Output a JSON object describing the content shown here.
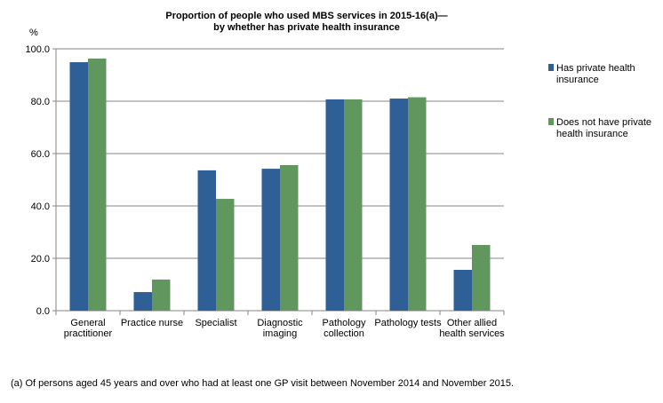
{
  "chart_data": {
    "type": "bar",
    "title": [
      "Proportion of people who used MBS services in 2015-16(a)—",
      "by whether has private health insurance"
    ],
    "ylabel": "%",
    "xlabel": "",
    "ylim": [
      0,
      100
    ],
    "yticks": [
      "0.0",
      "20.0",
      "40.0",
      "60.0",
      "80.0",
      "100.0"
    ],
    "grid": true,
    "legend_position": "right",
    "categories": [
      [
        "General",
        "practitioner"
      ],
      [
        "Practice nurse"
      ],
      [
        "Specialist"
      ],
      [
        "Diagnostic",
        "imaging"
      ],
      [
        "Pathology",
        "collection"
      ],
      [
        "Pathology tests"
      ],
      [
        "Other allied",
        "health services"
      ]
    ],
    "series": [
      {
        "name": [
          "Has private health",
          "insurance"
        ],
        "color": "#2E5F96",
        "values": [
          94.9,
          7.1,
          53.6,
          54.2,
          80.7,
          81.0,
          15.6
        ]
      },
      {
        "name": [
          "Does not have private",
          "health insurance"
        ],
        "color": "#61975E",
        "values": [
          96.3,
          11.9,
          42.7,
          55.6,
          80.7,
          81.5,
          25.1
        ]
      }
    ],
    "footnote": "(a) Of persons aged 45 years and over who had at least one GP visit between November 2014 and November 2015."
  }
}
